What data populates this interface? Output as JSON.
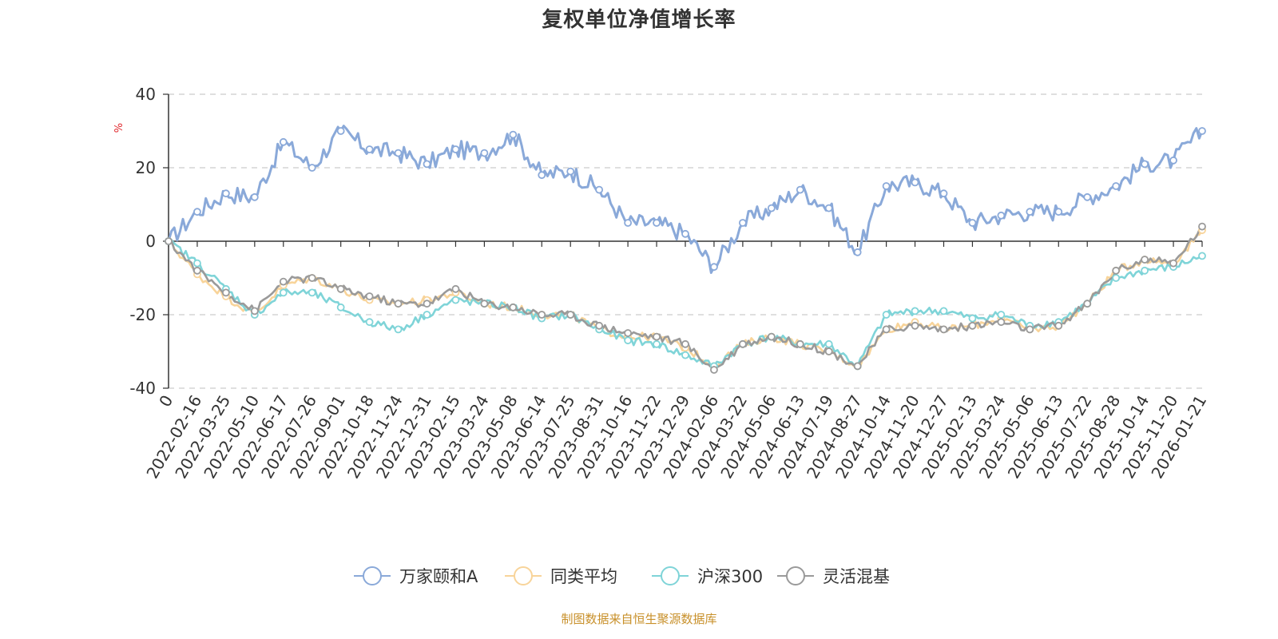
{
  "title": "复权单位净值增长率",
  "source_note": "制图数据来自恒生聚源数据库",
  "chart_data": {
    "type": "line",
    "title": "复权单位净值增长率",
    "ylabel": "%",
    "xlabel": "",
    "ylim": [
      -40,
      40
    ],
    "yticks": [
      -40,
      -20,
      0,
      20,
      40
    ],
    "grid": true,
    "legend_position": "bottom-center",
    "x_tick_labels": [
      "0",
      "2022-02-16",
      "2022-03-25",
      "2022-05-10",
      "2022-06-17",
      "2022-07-26",
      "2022-09-01",
      "2022-10-18",
      "2022-11-24",
      "2022-12-31",
      "2023-02-15",
      "2023-03-24",
      "2023-05-08",
      "2023-06-14",
      "2023-07-25",
      "2023-08-31",
      "2023-10-16",
      "2023-11-22",
      "2023-12-29",
      "2024-02-06",
      "2024-03-22",
      "2024-05-06",
      "2024-06-13",
      "2024-07-19",
      "2024-08-27",
      "2024-10-14",
      "2024-11-20",
      "2024-12-27",
      "2025-02-13",
      "2025-03-24",
      "2025-05-06",
      "2025-06-13",
      "2025-07-22",
      "2025-08-28",
      "2025-10-14",
      "2025-11-20",
      "2026-01-21"
    ],
    "x_index": [
      0,
      1,
      2,
      3,
      4,
      5,
      6,
      7,
      8,
      9,
      10,
      11,
      12,
      13,
      14,
      15,
      16,
      17,
      18,
      19,
      20,
      21,
      22,
      23,
      24,
      25,
      26,
      27,
      28,
      29,
      30,
      31,
      32,
      33,
      34,
      35,
      36
    ],
    "series": [
      {
        "name": "万家颐和A",
        "color": "#8aa9d9",
        "values": [
          0,
          8,
          13,
          12,
          27,
          20,
          30,
          25,
          24,
          21,
          25,
          24,
          29,
          18,
          19,
          14,
          5,
          5,
          2,
          -7,
          5,
          9,
          14,
          9,
          -3,
          15,
          16,
          13,
          5,
          7,
          8,
          8,
          12,
          15,
          21,
          22,
          30
        ]
      },
      {
        "name": "同类平均",
        "color": "#f8d49a",
        "values": [
          0,
          -9,
          -15,
          -20,
          -12,
          -10,
          -13,
          -16,
          -17,
          -16,
          -14,
          -17,
          -18,
          -20,
          -20,
          -24,
          -26,
          -26,
          -29,
          -34,
          -28,
          -26,
          -28,
          -30,
          -34,
          -24,
          -22,
          -24,
          -23,
          -21,
          -24,
          -23,
          -17,
          -8,
          -5,
          -6,
          3
        ]
      },
      {
        "name": "沪深300",
        "color": "#7fd4d8",
        "values": [
          0,
          -6,
          -13,
          -20,
          -14,
          -14,
          -18,
          -22,
          -24,
          -20,
          -16,
          -17,
          -18,
          -21,
          -20,
          -24,
          -27,
          -28,
          -31,
          -34,
          -28,
          -26,
          -28,
          -28,
          -34,
          -20,
          -19,
          -19,
          -21,
          -20,
          -23,
          -22,
          -17,
          -10,
          -8,
          -7,
          -4
        ]
      },
      {
        "name": "灵活混基",
        "color": "#9a9a9a",
        "values": [
          0,
          -8,
          -14,
          -19,
          -11,
          -10,
          -13,
          -15,
          -17,
          -17,
          -13,
          -17,
          -18,
          -20,
          -20,
          -23,
          -25,
          -26,
          -28,
          -35,
          -28,
          -26,
          -28,
          -30,
          -34,
          -24,
          -23,
          -24,
          -23,
          -22,
          -24,
          -23,
          -17,
          -8,
          -5,
          -6,
          4
        ]
      }
    ]
  }
}
